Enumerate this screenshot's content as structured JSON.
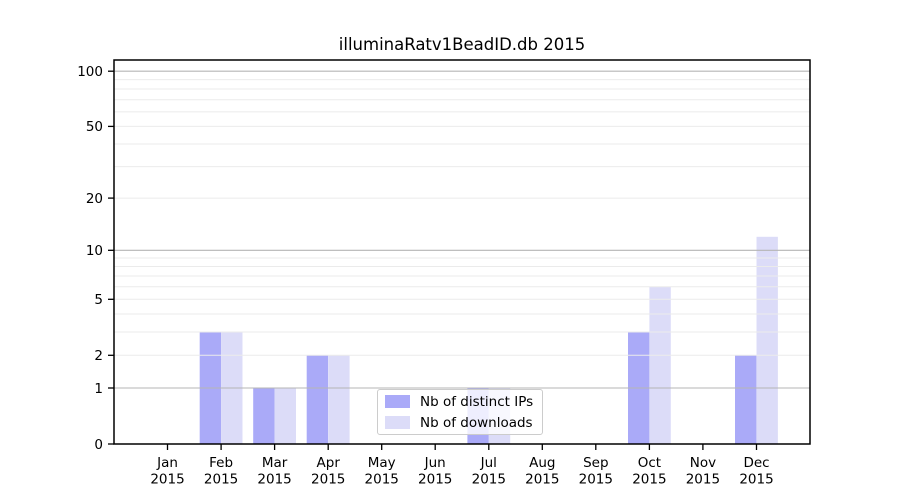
{
  "chart_data": {
    "type": "bar",
    "title": "illuminaRatv1BeadID.db 2015",
    "categories": [
      "Jan",
      "Feb",
      "Mar",
      "Apr",
      "May",
      "Jun",
      "Jul",
      "Aug",
      "Sep",
      "Oct",
      "Nov",
      "Dec"
    ],
    "category_year": "2015",
    "series": [
      {
        "name": "Nb of distinct IPs",
        "color": "#aaaaf8",
        "values": [
          0,
          3,
          1,
          2,
          0,
          0,
          1,
          0,
          0,
          3,
          0,
          2
        ]
      },
      {
        "name": "Nb of downloads",
        "color": "#dcdcf8",
        "values": [
          0,
          3,
          1,
          2,
          0,
          0,
          1,
          0,
          0,
          6,
          0,
          12
        ]
      }
    ],
    "xlabel": "",
    "ylabel": "",
    "yscale": "log1p",
    "ylim": [
      0,
      115
    ],
    "y_ticks": [
      0,
      1,
      2,
      5,
      10,
      20,
      50,
      100
    ],
    "grid": "on",
    "grid_major_values": [
      1,
      10,
      100
    ],
    "grid_minor_values": [
      2,
      3,
      4,
      5,
      6,
      7,
      8,
      9,
      20,
      30,
      40,
      50,
      60,
      70,
      80,
      90
    ],
    "legend_position": "lower center"
  },
  "colors": {
    "axis": "#000000",
    "tick_text": "#000000",
    "grid_major": "#b5b5b5",
    "grid_minor": "#ebebeb",
    "legend_border": "#cccccc"
  }
}
